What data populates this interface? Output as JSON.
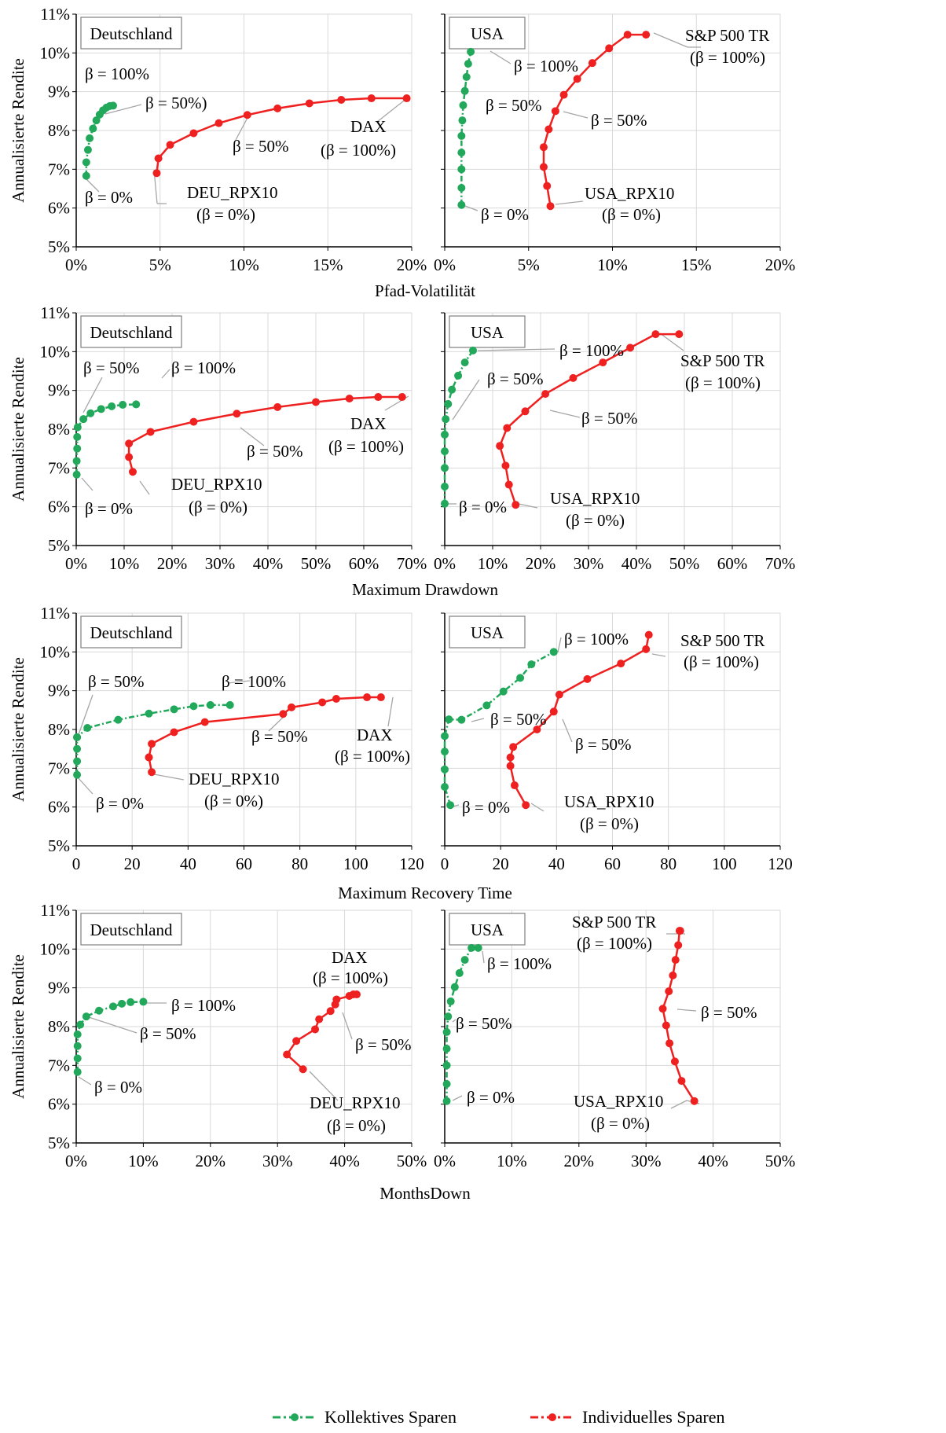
{
  "colors": {
    "collective": "#22a85a",
    "individual": "#ef2020",
    "axis": "#000000",
    "grid": "#d9d9d9",
    "leader": "#a6a6a6"
  },
  "y_axis_label": "Annualisierte Rendite",
  "legend": {
    "collective": "Kollektives Sparen",
    "individual": "Individuelles Sparen"
  },
  "chart_data": [
    {
      "type": "line",
      "title": "Deutschland",
      "xlabel": "Pfad-Volatilität",
      "ylabel": "Annualisierte Rendite",
      "xlim": [
        0,
        20
      ],
      "ylim": [
        5,
        11
      ],
      "x_unit": "%",
      "xticks": [
        "0%",
        "5%",
        "10%",
        "15%",
        "20%"
      ],
      "yticks": [
        "5%",
        "6%",
        "7%",
        "8%",
        "9%",
        "10%",
        "11%"
      ],
      "series": [
        {
          "name": "Kollektives Sparen",
          "x": [
            0.6,
            0.6,
            0.7,
            0.8,
            1.0,
            1.2,
            1.4,
            1.6,
            1.8,
            2.0,
            2.2
          ],
          "y": [
            6.83,
            7.18,
            7.5,
            7.8,
            8.05,
            8.26,
            8.41,
            8.52,
            8.59,
            8.63,
            8.64
          ]
        },
        {
          "name": "Individuelles Sparen",
          "x": [
            4.8,
            4.9,
            5.6,
            7.0,
            8.5,
            10.2,
            12.0,
            13.9,
            15.8,
            17.6,
            19.7
          ],
          "y": [
            6.9,
            7.28,
            7.63,
            7.93,
            8.19,
            8.4,
            8.57,
            8.7,
            8.79,
            8.83,
            8.83
          ]
        }
      ],
      "annotations": [
        "β = 0%",
        "β = 50%)",
        "β = 100%",
        "β = 50%",
        "DAX",
        "(β = 100%)",
        "DEU_RPX10",
        "(β = 0%)"
      ]
    },
    {
      "type": "line",
      "title": "USA",
      "xlabel": "Pfad-Volatilität",
      "ylabel": "Annualisierte Rendite",
      "xlim": [
        0,
        20
      ],
      "ylim": [
        5,
        11
      ],
      "x_unit": "%",
      "xticks": [
        "0%",
        "5%",
        "10%",
        "15%",
        "20%"
      ],
      "yticks": [
        "5%",
        "6%",
        "7%",
        "8%",
        "9%",
        "10%",
        "11%"
      ],
      "series": [
        {
          "name": "Kollektives Sparen",
          "x": [
            1.0,
            1.0,
            1.0,
            1.0,
            1.0,
            1.05,
            1.1,
            1.2,
            1.3,
            1.4,
            1.55
          ],
          "y": [
            6.08,
            6.52,
            7.0,
            7.43,
            7.86,
            8.26,
            8.65,
            9.02,
            9.38,
            9.72,
            10.03
          ]
        },
        {
          "name": "Individuelles Sparen",
          "x": [
            6.3,
            6.1,
            5.9,
            5.9,
            6.2,
            6.6,
            7.1,
            7.9,
            8.8,
            9.8,
            10.9,
            12.0
          ],
          "y": [
            6.05,
            6.57,
            7.06,
            7.57,
            8.03,
            8.5,
            8.92,
            9.33,
            9.74,
            10.12,
            10.47,
            10.47
          ]
        }
      ],
      "annotations": [
        "β = 100%",
        "β = 50%",
        "β = 0%",
        "S&P 500 TR",
        "(β = 100%)",
        "β = 50%",
        "USA_RPX10",
        "(β = 0%)"
      ]
    },
    {
      "type": "line",
      "title": "Deutschland",
      "xlabel": "Maximum Drawdown",
      "ylabel": "Annualisierte Rendite",
      "xlim": [
        0,
        70
      ],
      "ylim": [
        5,
        11
      ],
      "x_unit": "%",
      "xticks": [
        "0%",
        "10%",
        "20%",
        "30%",
        "40%",
        "50%",
        "60%",
        "70%"
      ],
      "yticks": [
        "5%",
        "6%",
        "7%",
        "8%",
        "9%",
        "10%",
        "11%"
      ],
      "series": [
        {
          "name": "Kollektives Sparen",
          "x": [
            0.1,
            0.1,
            0.2,
            0.2,
            0.3,
            1.5,
            3.0,
            5.2,
            7.4,
            9.7,
            12.5
          ],
          "y": [
            6.83,
            7.18,
            7.5,
            7.8,
            8.05,
            8.26,
            8.41,
            8.52,
            8.59,
            8.63,
            8.64
          ]
        },
        {
          "name": "Individuelles Sparen",
          "x": [
            11.8,
            11.0,
            11.0,
            15.5,
            24.5,
            33.5,
            42.0,
            50.0,
            57.0,
            63.0,
            68.0
          ],
          "y": [
            6.9,
            7.28,
            7.63,
            7.93,
            8.19,
            8.4,
            8.57,
            8.7,
            8.79,
            8.83,
            8.83
          ]
        }
      ],
      "annotations": [
        "β = 50%",
        "β = 100%",
        "β = 0%",
        "β = 50%",
        "DAX",
        "(β = 100%)",
        "DEU_RPX10",
        "(β = 0%)"
      ]
    },
    {
      "type": "line",
      "title": "USA",
      "xlabel": "Maximum Drawdown",
      "ylabel": "Annualisierte Rendite",
      "xlim": [
        0,
        70
      ],
      "ylim": [
        5,
        11
      ],
      "x_unit": "%",
      "xticks": [
        "0%",
        "10%",
        "20%",
        "30%",
        "40%",
        "50%",
        "60%",
        "70%"
      ],
      "yticks": [
        "5%",
        "6%",
        "7%",
        "8%",
        "9%",
        "10%",
        "11%"
      ],
      "series": [
        {
          "name": "Kollektives Sparen",
          "x": [
            0.0,
            0.0,
            0.0,
            0.0,
            0.0,
            0.2,
            0.7,
            1.5,
            2.8,
            4.2,
            5.9
          ],
          "y": [
            6.08,
            6.52,
            7.0,
            7.43,
            7.86,
            8.26,
            8.65,
            9.02,
            9.38,
            9.72,
            10.03
          ]
        },
        {
          "name": "Individuelles Sparen",
          "x": [
            14.8,
            13.4,
            12.7,
            11.5,
            13.0,
            16.8,
            21.0,
            26.8,
            33.0,
            38.7,
            44.0,
            48.9
          ],
          "y": [
            6.05,
            6.57,
            7.06,
            7.57,
            8.03,
            8.46,
            8.91,
            9.32,
            9.72,
            10.1,
            10.45,
            10.45
          ]
        }
      ],
      "annotations": [
        "β = 100%",
        "β = 50%",
        "β = 0%",
        "S&P 500 TR",
        "(β = 100%)",
        "β = 50%",
        "USA_RPX10",
        "(β = 0%)"
      ]
    },
    {
      "type": "line",
      "title": "Deutschland",
      "xlabel": "Maximum Recovery Time",
      "ylabel": "Annualisierte Rendite",
      "xlim": [
        0,
        120
      ],
      "ylim": [
        5,
        11
      ],
      "x_unit": "",
      "xticks": [
        "0",
        "20",
        "40",
        "60",
        "80",
        "100",
        "120"
      ],
      "yticks": [
        "5%",
        "6%",
        "7%",
        "8%",
        "9%",
        "10%",
        "11%"
      ],
      "series": [
        {
          "name": "Kollektives Sparen",
          "x": [
            0.3,
            0.3,
            0.3,
            0.3,
            0.3,
            4.0,
            15.0,
            26.0,
            35.0,
            42.0,
            48.0,
            55.0
          ],
          "y": [
            6.83,
            7.18,
            7.5,
            7.8,
            7.8,
            8.04,
            8.25,
            8.41,
            8.52,
            8.6,
            8.63,
            8.63
          ]
        },
        {
          "name": "Individuelles Sparen",
          "x": [
            27.0,
            26.0,
            26.0,
            27.0,
            35.0,
            46.0,
            74.0,
            77.0,
            88.0,
            93.0,
            104.0,
            109.0
          ],
          "y": [
            6.9,
            7.28,
            7.28,
            7.63,
            7.93,
            8.19,
            8.4,
            8.57,
            8.7,
            8.79,
            8.83,
            8.83
          ]
        }
      ],
      "annotations": [
        "β = 50%",
        "β = 100%",
        "β = 0%",
        "β = 50%",
        "DAX",
        "(β = 100%)",
        "DEU_RPX10",
        "(β = 0%)"
      ]
    },
    {
      "type": "line",
      "title": "USA",
      "xlabel": "Maximum Recovery Time",
      "ylabel": "Annualisierte Rendite",
      "xlim": [
        0,
        120
      ],
      "ylim": [
        5,
        11
      ],
      "x_unit": "",
      "xticks": [
        "0",
        "20",
        "40",
        "60",
        "80",
        "100",
        "120"
      ],
      "yticks": [
        "5%",
        "6%",
        "7%",
        "8%",
        "9%",
        "10%",
        "11%"
      ],
      "series": [
        {
          "name": "Kollektives Sparen",
          "x": [
            2.0,
            0.0,
            0.0,
            0.0,
            0.0,
            1.5,
            6.0,
            15.0,
            21.0,
            27.0,
            31.0,
            39.0
          ],
          "y": [
            6.05,
            6.52,
            6.97,
            7.43,
            7.83,
            8.26,
            8.25,
            8.62,
            8.98,
            9.33,
            9.68,
            10.0
          ]
        },
        {
          "name": "Individuelles Sparen",
          "x": [
            29.0,
            25.0,
            23.5,
            23.5,
            24.5,
            33.0,
            39.0,
            41.0,
            51.0,
            63.0,
            72.0,
            73.0
          ],
          "y": [
            6.05,
            6.56,
            7.06,
            7.28,
            7.55,
            8.0,
            8.46,
            8.9,
            9.3,
            9.7,
            10.07,
            10.44
          ]
        }
      ],
      "annotations": [
        "β = 100%",
        "β = 50%",
        "β = 0%",
        "S&P 500 TR",
        "(β = 100%)",
        "β = 50%",
        "USA_RPX10",
        "(β = 0%)"
      ]
    },
    {
      "type": "line",
      "title": "Deutschland",
      "xlabel": "MonthsDown",
      "ylabel": "Annualisierte Rendite",
      "xlim": [
        0,
        50
      ],
      "ylim": [
        5,
        11
      ],
      "x_unit": "%",
      "xticks": [
        "0%",
        "10%",
        "20%",
        "30%",
        "40%",
        "50%"
      ],
      "yticks": [
        "5%",
        "6%",
        "7%",
        "8%",
        "9%",
        "10%",
        "11%"
      ],
      "series": [
        {
          "name": "Kollektives Sparen",
          "x": [
            0.2,
            0.2,
            0.2,
            0.2,
            0.6,
            1.5,
            3.4,
            5.5,
            6.8,
            8.1,
            10.0
          ],
          "y": [
            6.83,
            7.18,
            7.5,
            7.8,
            8.05,
            8.26,
            8.41,
            8.52,
            8.59,
            8.63,
            8.64
          ]
        },
        {
          "name": "Individuelles Sparen",
          "x": [
            33.8,
            31.4,
            32.8,
            35.6,
            36.2,
            37.9,
            38.6,
            38.8,
            40.7,
            41.3,
            41.8
          ],
          "y": [
            6.9,
            7.28,
            7.63,
            7.93,
            8.19,
            8.4,
            8.57,
            8.7,
            8.79,
            8.83,
            8.83
          ]
        }
      ],
      "annotations": [
        "β = 100%",
        "β = 50%",
        "β = 0%",
        "DAX",
        "(β = 100%)",
        "β = 50%",
        "DEU_RPX10",
        "(β = 0%)"
      ]
    },
    {
      "type": "line",
      "title": "USA",
      "xlabel": "MonthsDown",
      "ylabel": "Annualisierte Rendite",
      "xlim": [
        0,
        50
      ],
      "ylim": [
        5,
        11
      ],
      "x_unit": "%",
      "xticks": [
        "0%",
        "10%",
        "20%",
        "30%",
        "40%",
        "50%"
      ],
      "yticks": [
        "5%",
        "6%",
        "7%",
        "8%",
        "9%",
        "10%",
        "11%"
      ],
      "series": [
        {
          "name": "Kollektives Sparen",
          "x": [
            0.3,
            0.3,
            0.3,
            0.3,
            0.3,
            0.5,
            0.9,
            1.5,
            2.2,
            3.0,
            4.0,
            5.0
          ],
          "y": [
            6.08,
            6.52,
            7.0,
            7.43,
            7.86,
            8.26,
            8.65,
            9.02,
            9.38,
            9.72,
            10.03,
            10.03
          ]
        },
        {
          "name": "Individuelles Sparen",
          "x": [
            37.2,
            35.3,
            34.3,
            33.5,
            33.0,
            32.5,
            33.4,
            34.0,
            34.4,
            34.8,
            35.0,
            35.1
          ],
          "y": [
            6.08,
            6.6,
            7.1,
            7.57,
            8.03,
            8.46,
            8.91,
            9.32,
            9.72,
            10.1,
            10.47,
            10.47
          ]
        }
      ],
      "annotations": [
        "S&P 500 TR",
        "(β = 100%)",
        "β = 100%",
        "β = 50%",
        "β = 0%",
        "β = 50%",
        "USA_RPX10",
        "(β = 0%)"
      ]
    }
  ]
}
